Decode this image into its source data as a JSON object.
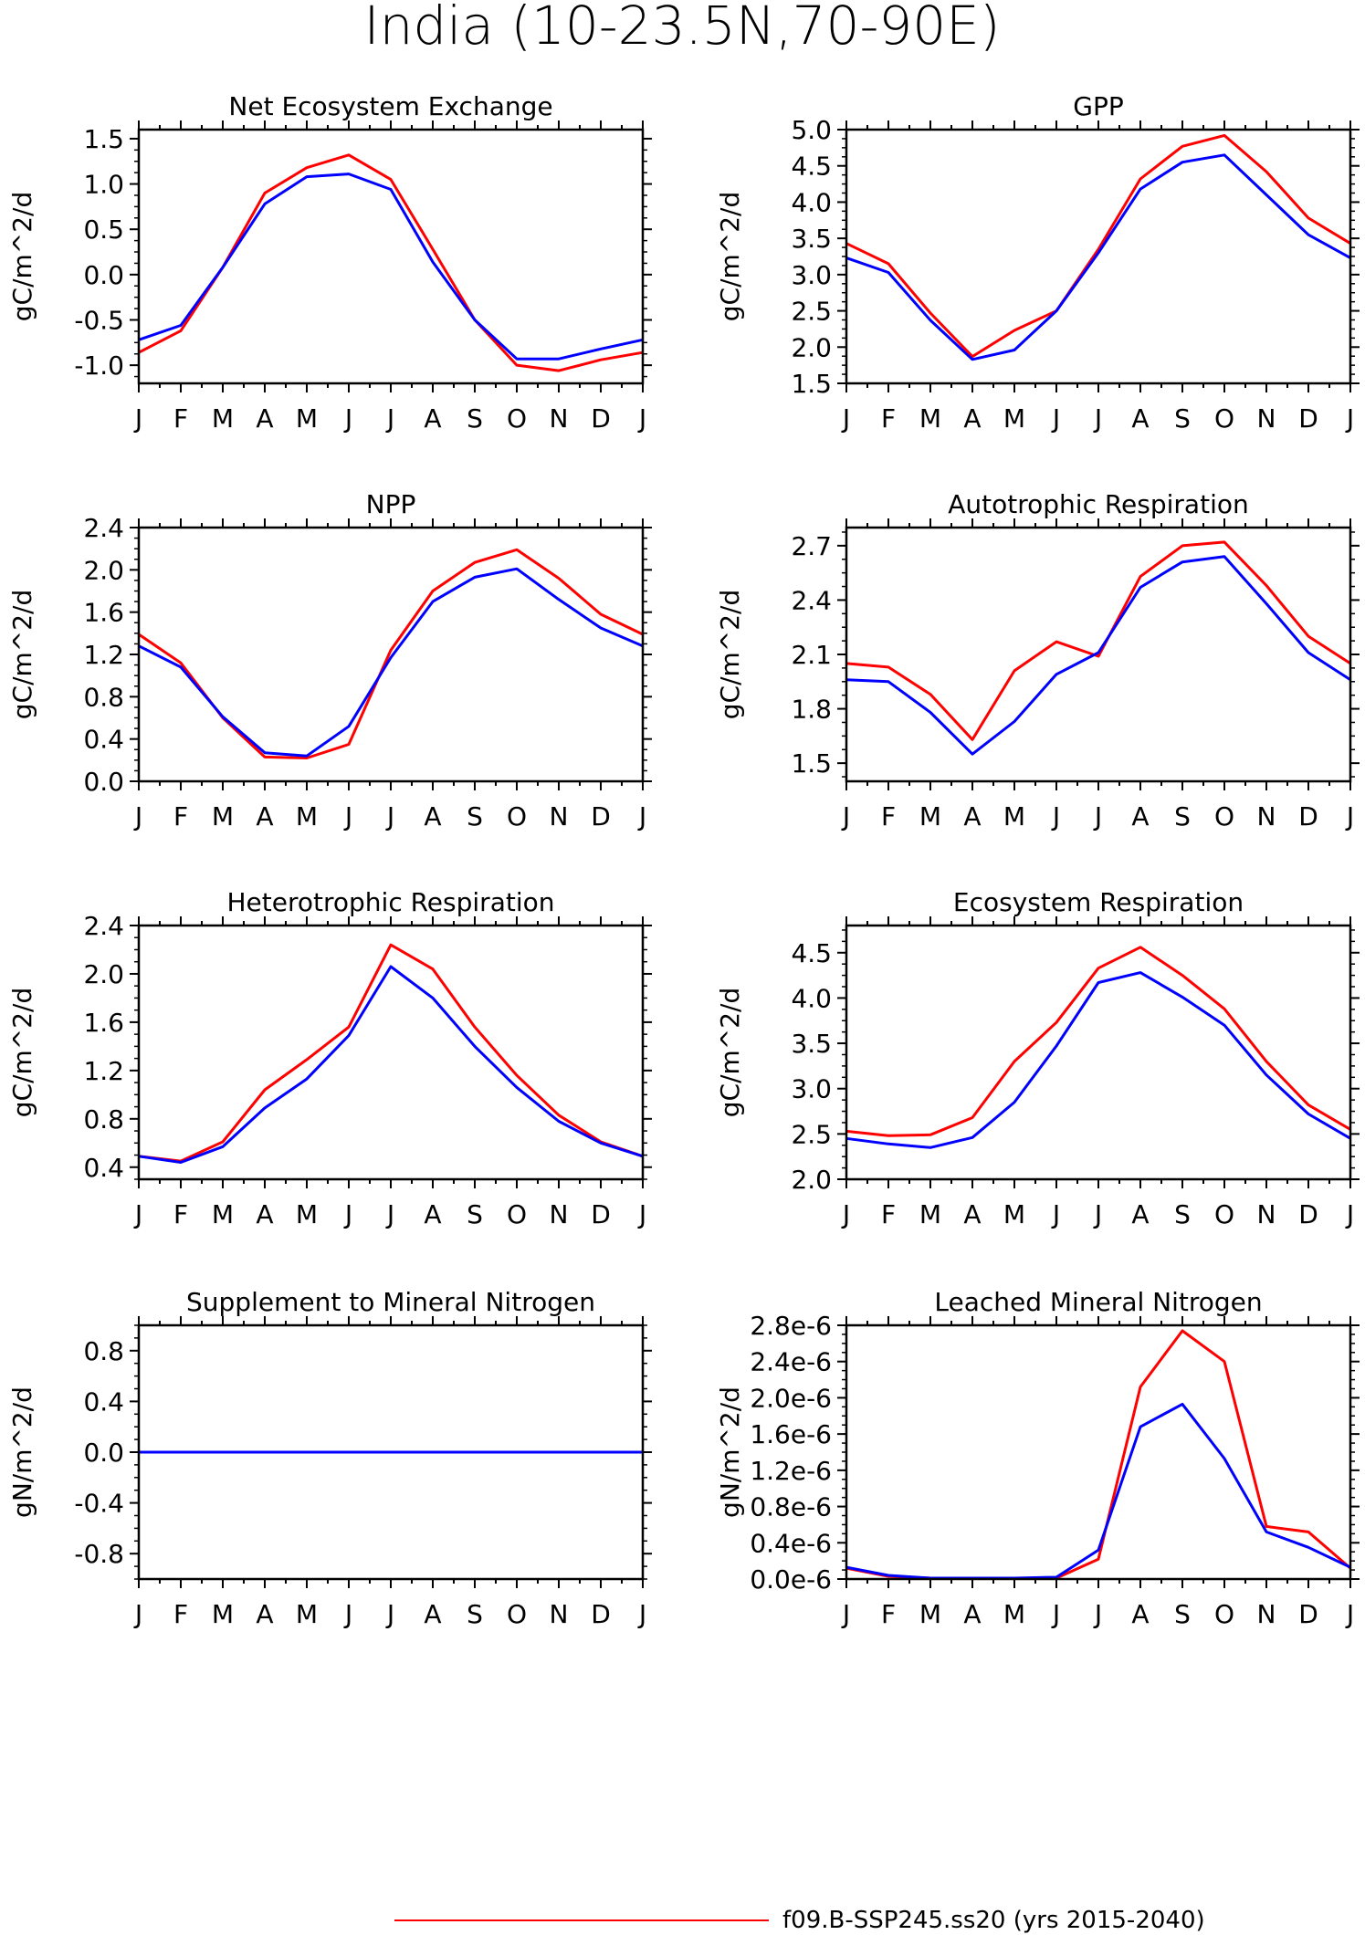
{
  "figure": {
    "title": "India (10-23.5N,70-90E)",
    "legend": [
      {
        "label": "f09.B-SSP245.ss20 (yrs 2015-2040)",
        "color": "#ff0000"
      }
    ]
  },
  "colors": {
    "series_a": "#ff0000",
    "series_b": "#0000ff"
  },
  "chart_data": [
    {
      "type": "line",
      "title": "Net Ecosystem Exchange",
      "ylabel": "gC/m^2/d",
      "categories": [
        "J",
        "F",
        "M",
        "A",
        "M",
        "J",
        "J",
        "A",
        "S",
        "O",
        "N",
        "D",
        "J"
      ],
      "ylim": [
        -1.2,
        1.6
      ],
      "yticks": [
        -1.0,
        -0.5,
        0.0,
        0.5,
        1.0,
        1.5
      ],
      "ytick_labels": [
        "-1.0",
        "-0.5",
        "0.0",
        "0.5",
        "1.0",
        "1.5"
      ],
      "series": [
        {
          "color": "#ff0000",
          "values": [
            -0.86,
            -0.62,
            0.08,
            0.9,
            1.18,
            1.32,
            1.05,
            0.28,
            -0.5,
            -1.0,
            -1.06,
            -0.94,
            -0.86
          ]
        },
        {
          "color": "#0000ff",
          "values": [
            -0.72,
            -0.56,
            0.08,
            0.78,
            1.08,
            1.11,
            0.94,
            0.14,
            -0.5,
            -0.93,
            -0.93,
            -0.82,
            -0.72
          ]
        }
      ]
    },
    {
      "type": "line",
      "title": "GPP",
      "ylabel": "gC/m^2/d",
      "categories": [
        "J",
        "F",
        "M",
        "A",
        "M",
        "J",
        "J",
        "A",
        "S",
        "O",
        "N",
        "D",
        "J"
      ],
      "ylim": [
        1.5,
        5.0
      ],
      "yticks": [
        1.5,
        2.0,
        2.5,
        3.0,
        3.5,
        4.0,
        4.5,
        5.0
      ],
      "ytick_labels": [
        "1.5",
        "2.0",
        "2.5",
        "3.0",
        "3.5",
        "4.0",
        "4.5",
        "5.0"
      ],
      "series": [
        {
          "color": "#ff0000",
          "values": [
            3.43,
            3.15,
            2.47,
            1.87,
            2.23,
            2.5,
            3.35,
            4.32,
            4.77,
            4.92,
            4.42,
            3.78,
            3.43
          ]
        },
        {
          "color": "#0000ff",
          "values": [
            3.23,
            3.03,
            2.37,
            1.83,
            1.96,
            2.5,
            3.3,
            4.18,
            4.55,
            4.65,
            4.1,
            3.55,
            3.23
          ]
        }
      ]
    },
    {
      "type": "line",
      "title": "NPP",
      "ylabel": "gC/m^2/d",
      "categories": [
        "J",
        "F",
        "M",
        "A",
        "M",
        "J",
        "J",
        "A",
        "S",
        "O",
        "N",
        "D",
        "J"
      ],
      "ylim": [
        0.0,
        2.4
      ],
      "yticks": [
        0.0,
        0.4,
        0.8,
        1.2,
        1.6,
        2.0,
        2.4
      ],
      "ytick_labels": [
        "0.0",
        "0.4",
        "0.8",
        "1.2",
        "1.6",
        "2.0",
        "2.4"
      ],
      "series": [
        {
          "color": "#ff0000",
          "values": [
            1.39,
            1.12,
            0.6,
            0.23,
            0.22,
            0.35,
            1.24,
            1.8,
            2.07,
            2.19,
            1.92,
            1.58,
            1.39
          ]
        },
        {
          "color": "#0000ff",
          "values": [
            1.28,
            1.08,
            0.61,
            0.27,
            0.24,
            0.52,
            1.17,
            1.7,
            1.93,
            2.01,
            1.72,
            1.45,
            1.28
          ]
        }
      ]
    },
    {
      "type": "line",
      "title": "Autotrophic Respiration",
      "ylabel": "gC/m^2/d",
      "categories": [
        "J",
        "F",
        "M",
        "A",
        "M",
        "J",
        "J",
        "A",
        "S",
        "O",
        "N",
        "D",
        "J"
      ],
      "ylim": [
        1.4,
        2.8
      ],
      "yticks": [
        1.5,
        1.8,
        2.1,
        2.4,
        2.7
      ],
      "ytick_labels": [
        "1.5",
        "1.8",
        "2.1",
        "2.4",
        "2.7"
      ],
      "series": [
        {
          "color": "#ff0000",
          "values": [
            2.05,
            2.03,
            1.88,
            1.63,
            2.01,
            2.17,
            2.09,
            2.53,
            2.7,
            2.72,
            2.48,
            2.2,
            2.05
          ]
        },
        {
          "color": "#0000ff",
          "values": [
            1.96,
            1.95,
            1.78,
            1.55,
            1.73,
            1.99,
            2.11,
            2.47,
            2.61,
            2.64,
            2.38,
            2.11,
            1.96
          ]
        }
      ]
    },
    {
      "type": "line",
      "title": "Heterotrophic Respiration",
      "ylabel": "gC/m^2/d",
      "categories": [
        "J",
        "F",
        "M",
        "A",
        "M",
        "J",
        "J",
        "A",
        "S",
        "O",
        "N",
        "D",
        "J"
      ],
      "ylim": [
        0.3,
        2.4
      ],
      "yticks": [
        0.4,
        0.8,
        1.2,
        1.6,
        2.0,
        2.4
      ],
      "ytick_labels": [
        "0.4",
        "0.8",
        "1.2",
        "1.6",
        "2.0",
        "2.4"
      ],
      "series": [
        {
          "color": "#ff0000",
          "values": [
            0.49,
            0.45,
            0.61,
            1.04,
            1.29,
            1.56,
            2.24,
            2.04,
            1.56,
            1.16,
            0.83,
            0.61,
            0.49
          ]
        },
        {
          "color": "#0000ff",
          "values": [
            0.49,
            0.44,
            0.57,
            0.89,
            1.13,
            1.49,
            2.06,
            1.8,
            1.4,
            1.06,
            0.78,
            0.6,
            0.49
          ]
        }
      ]
    },
    {
      "type": "line",
      "title": "Ecosystem Respiration",
      "ylabel": "gC/m^2/d",
      "categories": [
        "J",
        "F",
        "M",
        "A",
        "M",
        "J",
        "J",
        "A",
        "S",
        "O",
        "N",
        "D",
        "J"
      ],
      "ylim": [
        2.0,
        4.8
      ],
      "yticks": [
        2.0,
        2.5,
        3.0,
        3.5,
        4.0,
        4.5
      ],
      "ytick_labels": [
        "2.0",
        "2.5",
        "3.0",
        "3.5",
        "4.0",
        "4.5"
      ],
      "series": [
        {
          "color": "#ff0000",
          "values": [
            2.53,
            2.48,
            2.49,
            2.68,
            3.3,
            3.73,
            4.33,
            4.56,
            4.25,
            3.88,
            3.3,
            2.82,
            2.55
          ]
        },
        {
          "color": "#0000ff",
          "values": [
            2.45,
            2.39,
            2.35,
            2.46,
            2.85,
            3.47,
            4.17,
            4.28,
            4.01,
            3.7,
            3.15,
            2.72,
            2.45
          ]
        }
      ]
    },
    {
      "type": "line",
      "title": "Supplement to Mineral Nitrogen",
      "ylabel": "gN/m^2/d",
      "categories": [
        "J",
        "F",
        "M",
        "A",
        "M",
        "J",
        "J",
        "A",
        "S",
        "O",
        "N",
        "D",
        "J"
      ],
      "ylim": [
        -1.0,
        1.0
      ],
      "yticks": [
        -0.8,
        -0.4,
        0.0,
        0.4,
        0.8
      ],
      "ytick_labels": [
        "-0.8",
        "-0.4",
        "0.0",
        "0.4",
        "0.8"
      ],
      "series": [
        {
          "color": "#ff0000",
          "values": [
            0,
            0,
            0,
            0,
            0,
            0,
            0,
            0,
            0,
            0,
            0,
            0,
            0
          ]
        },
        {
          "color": "#0000ff",
          "values": [
            0,
            0,
            0,
            0,
            0,
            0,
            0,
            0,
            0,
            0,
            0,
            0,
            0
          ]
        }
      ]
    },
    {
      "type": "line",
      "title": "Leached Mineral Nitrogen",
      "ylabel": "gN/m^2/d",
      "categories": [
        "J",
        "F",
        "M",
        "A",
        "M",
        "J",
        "J",
        "A",
        "S",
        "O",
        "N",
        "D",
        "J"
      ],
      "ylim": [
        0.0,
        2.8e-06
      ],
      "yticks": [
        0.0,
        4e-07,
        8e-07,
        1.2e-06,
        1.6e-06,
        2e-06,
        2.4e-06,
        2.8e-06
      ],
      "ytick_labels": [
        "0.0e-6",
        "0.4e-6",
        "0.8e-6",
        "1.2e-6",
        "1.6e-6",
        "2.0e-6",
        "2.4e-6",
        "2.8e-6"
      ],
      "series": [
        {
          "color": "#ff0000",
          "values": [
            1.2e-07,
            3e-08,
            1e-08,
            1e-08,
            1e-08,
            1e-08,
            2.2e-07,
            2.12e-06,
            2.74e-06,
            2.4e-06,
            5.8e-07,
            5.2e-07,
            1.2e-07
          ]
        },
        {
          "color": "#0000ff",
          "values": [
            1.3e-07,
            4e-08,
            1e-08,
            1e-08,
            1e-08,
            2e-08,
            3.2e-07,
            1.68e-06,
            1.93e-06,
            1.33e-06,
            5.2e-07,
            3.5e-07,
            1.3e-07
          ]
        }
      ]
    }
  ]
}
